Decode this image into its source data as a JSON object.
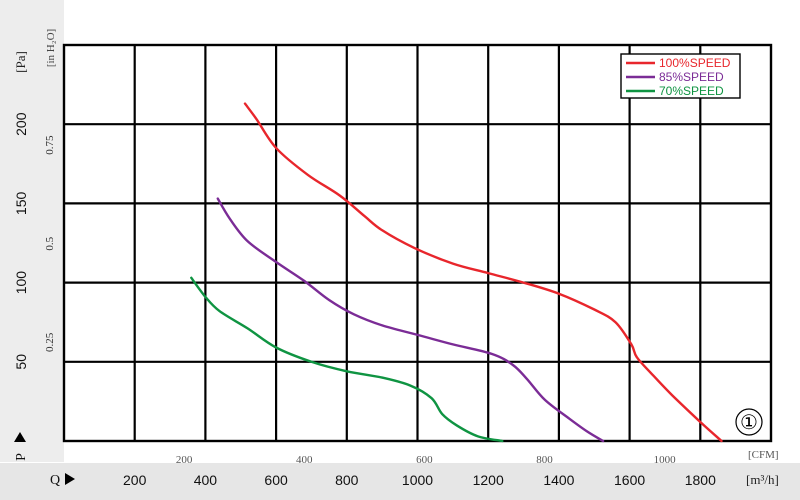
{
  "chart_data": {
    "type": "line",
    "xlabel_bottom": "Q",
    "xunit_bottom": "[m³/h]",
    "xunit_top": "[CFM]",
    "ylabel": "P",
    "yunit_left": "[Pa]",
    "yunit_inner": "[in H₂O]",
    "xlim_m3h": [
      0,
      2000
    ],
    "ylim_pa": [
      0,
      250
    ],
    "grid": true,
    "legend_position": "top-right",
    "x_ticks_m3h": [
      200,
      400,
      600,
      800,
      1000,
      1200,
      1400,
      1600,
      1800
    ],
    "x_ticks_cfm": [
      200,
      400,
      600,
      800,
      1000
    ],
    "y_ticks_pa": [
      50,
      100,
      150,
      200
    ],
    "y_ticks_inh2o": [
      "0.25",
      "0.5",
      "0.75"
    ],
    "series": [
      {
        "name": "100%SPEED",
        "color": "#e8262c",
        "x": [
          512,
          545,
          600,
          690,
          780,
          850,
          900,
          990,
          1100,
          1200,
          1300,
          1400,
          1500,
          1560,
          1605,
          1620,
          1660,
          1720,
          1800,
          1860
        ],
        "y": [
          213,
          203,
          185,
          168,
          155,
          142,
          133,
          122,
          112,
          106,
          100,
          93,
          83,
          75,
          61,
          53,
          43,
          29,
          12,
          0
        ]
      },
      {
        "name": "85%SPEED",
        "color": "#7b2c96",
        "x": [
          435,
          470,
          520,
          600,
          680,
          750,
          820,
          900,
          1000,
          1100,
          1210,
          1270,
          1310,
          1360,
          1430,
          1480,
          1525
        ],
        "y": [
          153,
          140,
          126,
          113,
          101,
          89,
          80,
          73,
          67,
          61,
          55,
          48,
          39,
          26,
          14,
          6,
          0
        ]
      },
      {
        "name": "70%SPEED",
        "color": "#0f9442",
        "x": [
          360,
          400,
          440,
          520,
          600,
          700,
          800,
          900,
          980,
          1040,
          1070,
          1110,
          1170,
          1240
        ],
        "y": [
          103,
          91,
          82,
          71,
          59,
          50,
          44,
          40,
          35,
          27,
          17,
          10,
          3,
          0
        ]
      }
    ],
    "annotation": "①"
  }
}
